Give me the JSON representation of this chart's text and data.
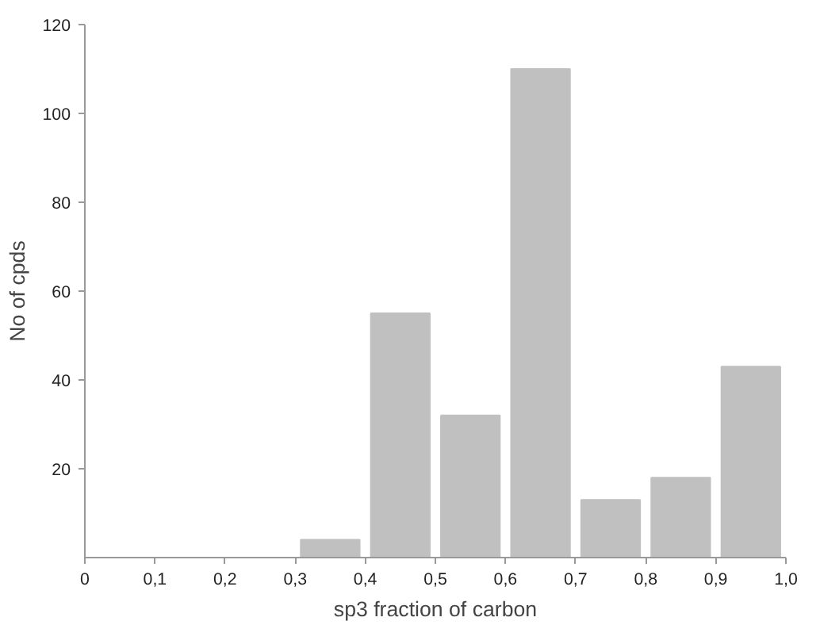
{
  "chart_data": {
    "type": "histogram",
    "xlabel": "sp3 fraction of carbon",
    "ylabel": "No of cpds",
    "bins": [
      0,
      0.1,
      0.2,
      0.3,
      0.4,
      0.5,
      0.6,
      0.7,
      0.8,
      0.9,
      1.0
    ],
    "values": [
      0,
      0,
      0,
      4,
      55,
      32,
      110,
      13,
      18,
      43
    ],
    "color": "#c0c0c0",
    "xlim": [
      0,
      1.0
    ],
    "xticks": [
      {
        "value": 0,
        "label": "0"
      },
      {
        "value": 0.1,
        "label": "0,1"
      },
      {
        "value": 0.2,
        "label": "0,2"
      },
      {
        "value": 0.3,
        "label": "0,3"
      },
      {
        "value": 0.4,
        "label": "0,4"
      },
      {
        "value": 0.5,
        "label": "0,5"
      },
      {
        "value": 0.6,
        "label": "0,6"
      },
      {
        "value": 0.7,
        "label": "0,7"
      },
      {
        "value": 0.8,
        "label": "0,8"
      },
      {
        "value": 0.9,
        "label": "0,9"
      },
      {
        "value": 1.0,
        "label": "1,0"
      }
    ],
    "ylim": [
      0,
      120
    ],
    "yticks": [
      20,
      40,
      60,
      80,
      100,
      120
    ],
    "grid": false
  }
}
